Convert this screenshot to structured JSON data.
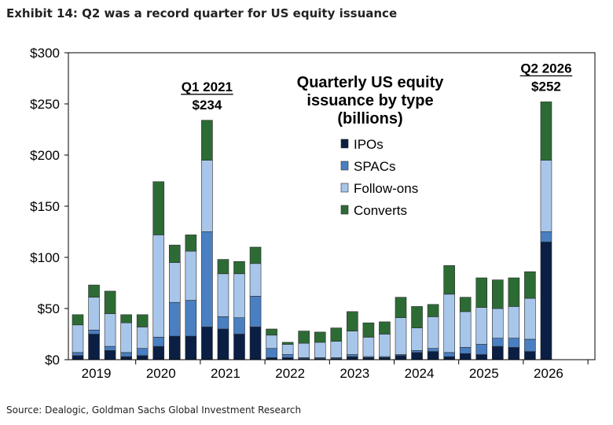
{
  "header": {
    "title": "Exhibit 14: Q2 was a record quarter for US equity issuance"
  },
  "footer": {
    "source": "Source: Dealogic, Goldman Sachs Global Investment Research"
  },
  "chart_data": {
    "type": "bar",
    "stacked": true,
    "title_lines": [
      "Quarterly US equity",
      "issuance by type",
      "(billions)"
    ],
    "ylim": [
      0,
      300
    ],
    "yticks": [
      0,
      50,
      100,
      150,
      200,
      250,
      300
    ],
    "ytick_labels": [
      "$0",
      "$50",
      "$100",
      "$150",
      "$200",
      "$250",
      "$300"
    ],
    "year_labels": [
      "2019",
      "2020",
      "2021",
      "2022",
      "2023",
      "2024",
      "2025",
      "2026"
    ],
    "quarters_per_year": 4,
    "legend_position": "upper-center",
    "series": [
      {
        "name": "IPOs",
        "color": "#0b1f44",
        "values": [
          4,
          25,
          9,
          3,
          4,
          13,
          23,
          23,
          32,
          30,
          25,
          32,
          2,
          2,
          1,
          1,
          1,
          3,
          2,
          2,
          4,
          7,
          8,
          3,
          6,
          5,
          13,
          12,
          8,
          115
        ]
      },
      {
        "name": "SPACs",
        "color": "#4a7fc1",
        "values": [
          3,
          4,
          4,
          4,
          7,
          9,
          33,
          35,
          93,
          12,
          16,
          30,
          9,
          3,
          1,
          1,
          1,
          2,
          1,
          1,
          1,
          2,
          3,
          4,
          6,
          10,
          8,
          9,
          12,
          10
        ]
      },
      {
        "name": "Follow-ons",
        "color": "#a8c6ea",
        "values": [
          27,
          32,
          32,
          29,
          21,
          100,
          39,
          48,
          70,
          42,
          43,
          32,
          13,
          10,
          14,
          15,
          16,
          23,
          19,
          22,
          36,
          22,
          31,
          57,
          35,
          36,
          29,
          31,
          40,
          70
        ]
      },
      {
        "name": "Converts",
        "color": "#2d6b35",
        "values": [
          10,
          12,
          22,
          8,
          12,
          52,
          17,
          16,
          39,
          14,
          12,
          16,
          6,
          2,
          12,
          10,
          13,
          19,
          14,
          12,
          20,
          21,
          12,
          28,
          14,
          29,
          28,
          28,
          26,
          57
        ]
      }
    ],
    "annotations": [
      {
        "label": "Q1 2021",
        "value_label": "$234",
        "index": 8
      },
      {
        "label": "Q2 2026",
        "value_label": "$252",
        "index": 29
      }
    ]
  }
}
